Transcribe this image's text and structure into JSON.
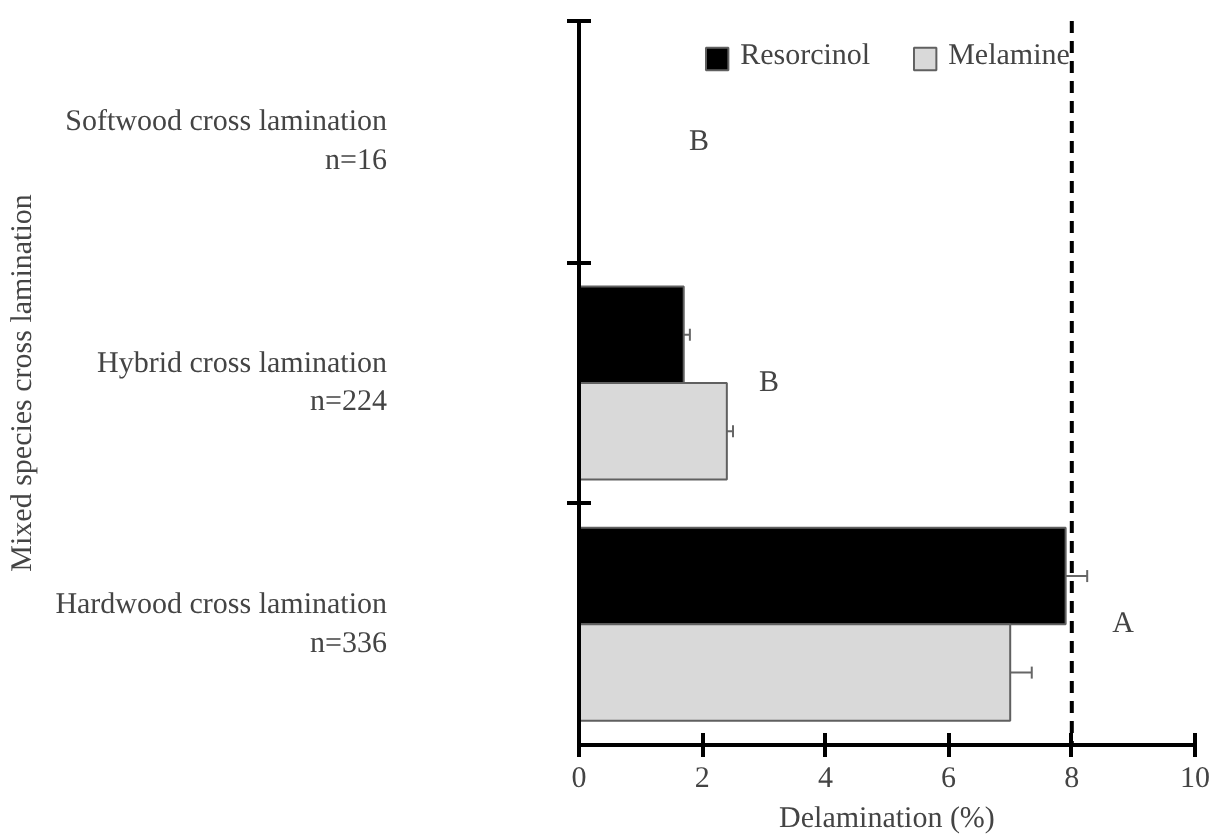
{
  "chart_data": {
    "type": "bar",
    "orientation": "horizontal",
    "xlabel": "Delamination (%)",
    "ylabel": "Mixed species cross lamination",
    "categories": [
      "Softwood cross lamination\nn=16",
      "Hybrid cross lamination\nn=224",
      "Hardwood cross lamination\nn=336"
    ],
    "series": [
      {
        "name": "Resorcinol",
        "color": "#000000",
        "values": [
          null,
          1.7,
          7.9
        ],
        "errors": [
          null,
          0.1,
          0.35
        ]
      },
      {
        "name": "Melamine",
        "color": "#d9d9d9",
        "values": [
          null,
          2.4,
          7.0
        ],
        "errors": [
          null,
          0.1,
          0.35
        ]
      }
    ],
    "xlim": [
      0,
      10
    ],
    "xticks": [
      0,
      2,
      4,
      6,
      8,
      10
    ],
    "grid": false,
    "legend": "top",
    "ref_lines": [
      {
        "axis": "x",
        "value": 8,
        "line_style": "dashed",
        "color": "#000000"
      }
    ],
    "annotations": [
      "B",
      "B",
      "A"
    ]
  }
}
